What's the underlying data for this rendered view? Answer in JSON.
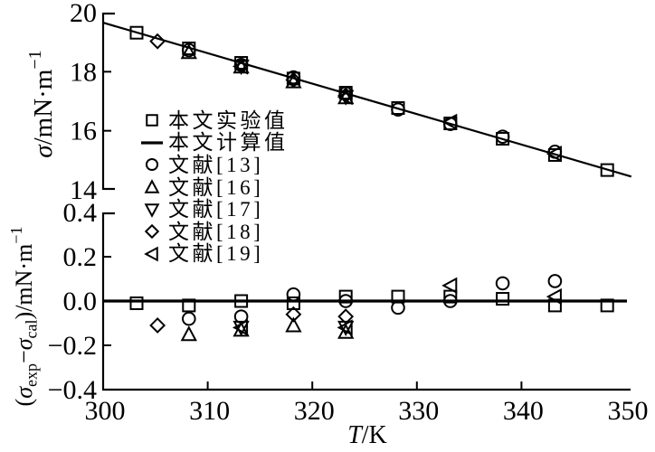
{
  "page": {
    "background": "#ffffff"
  },
  "chart_data": {
    "type": "scatter",
    "title": "",
    "colors": {
      "stroke": "#000000",
      "background": "#ffffff"
    },
    "x_axis": {
      "label_text": "T/K",
      "label_parts": [
        {
          "t": "T",
          "i": true
        },
        {
          "t": "/K"
        }
      ],
      "min": 300,
      "max": 350,
      "tick_values": [
        300,
        310,
        320,
        330,
        340,
        350
      ],
      "tick_labels": [
        "300",
        "310",
        "320",
        "330",
        "340",
        "350"
      ]
    },
    "top_panel": {
      "ylabel_text": "σ/mN·m⁻¹",
      "ylabel_parts": [
        {
          "t": "σ",
          "i": true
        },
        {
          "t": "/mN·m"
        },
        {
          "t": "−1",
          "sup": true
        }
      ],
      "ymin": 14,
      "ymax": 20,
      "tick_values": [
        20,
        18,
        16,
        14
      ],
      "tick_labels": [
        "20",
        "18",
        "16",
        "14"
      ],
      "line_series": {
        "name": "本文计算值",
        "x": [
          300,
          350.5
        ],
        "y": [
          19.66,
          14.45
        ]
      },
      "series": [
        {
          "name": "本文实验值",
          "marker": "square",
          "x": [
            303.2,
            308.2,
            313.2,
            318.2,
            323.2,
            328.2,
            333.2,
            338.2,
            343.2,
            348.2
          ],
          "y": [
            19.32,
            18.79,
            18.3,
            17.77,
            17.29,
            16.77,
            16.25,
            15.73,
            15.18,
            14.67
          ]
        },
        {
          "name": "文献[13]",
          "marker": "circle",
          "x": [
            308.2,
            313.2,
            318.2,
            323.2,
            328.2,
            333.2,
            338.2,
            343.2
          ],
          "y": [
            18.73,
            18.23,
            17.81,
            17.27,
            16.72,
            16.23,
            15.8,
            15.29
          ]
        },
        {
          "name": "文献[16]",
          "marker": "triangle-up",
          "x": [
            308.2,
            313.2,
            318.2,
            323.2
          ],
          "y": [
            18.66,
            18.17,
            17.67,
            17.13
          ]
        },
        {
          "name": "文献[17]",
          "marker": "triangle-down",
          "x": [
            313.2,
            323.2
          ],
          "y": [
            18.18,
            17.15
          ]
        },
        {
          "name": "文献[18]",
          "marker": "diamond",
          "x": [
            305.2,
            318.2,
            323.2
          ],
          "y": [
            19.03,
            17.72,
            17.2
          ]
        },
        {
          "name": "文献[19]",
          "marker": "triangle-left",
          "x": [
            313.2,
            323.2,
            333.2,
            343.2
          ],
          "y": [
            18.18,
            17.15,
            16.3,
            15.22
          ]
        }
      ]
    },
    "bottom_panel": {
      "ylabel_text": "(σexp−σcal)/mN·m⁻¹",
      "ylabel_parts": [
        {
          "t": "("
        },
        {
          "t": "σ",
          "i": true
        },
        {
          "t": "exp",
          "sub": true
        },
        {
          "t": "−"
        },
        {
          "t": "σ",
          "i": true
        },
        {
          "t": "cal",
          "sub": true
        },
        {
          "t": ")/mN·m"
        },
        {
          "t": "−1",
          "sup": true
        }
      ],
      "ymin": -0.4,
      "ymax": 0.4,
      "tick_values": [
        0.4,
        0.2,
        0.0,
        -0.2,
        -0.4
      ],
      "tick_labels": [
        "0.4",
        "0.2",
        "0.0",
        "−0.2",
        "−0.4"
      ],
      "zero_line": true,
      "series": [
        {
          "name": "本文实验值",
          "marker": "square",
          "x": [
            303.2,
            308.2,
            313.2,
            318.2,
            323.2,
            328.2,
            333.2,
            338.2,
            343.2,
            348.2
          ],
          "y": [
            -0.01,
            -0.02,
            0.0,
            -0.01,
            0.02,
            0.02,
            0.02,
            0.01,
            -0.02,
            -0.02
          ]
        },
        {
          "name": "文献[13]",
          "marker": "circle",
          "x": [
            308.2,
            313.2,
            318.2,
            323.2,
            328.2,
            333.2,
            338.2,
            343.2
          ],
          "y": [
            -0.08,
            -0.07,
            0.03,
            0.0,
            -0.03,
            0.0,
            0.08,
            0.09
          ]
        },
        {
          "name": "文献[16]",
          "marker": "triangle-up",
          "x": [
            308.2,
            313.2,
            318.2,
            323.2
          ],
          "y": [
            -0.15,
            -0.13,
            -0.11,
            -0.14
          ]
        },
        {
          "name": "文献[17]",
          "marker": "triangle-down",
          "x": [
            313.2,
            323.2
          ],
          "y": [
            -0.12,
            -0.12
          ]
        },
        {
          "name": "文献[18]",
          "marker": "diamond",
          "x": [
            305.2,
            318.2,
            323.2
          ],
          "y": [
            -0.11,
            -0.06,
            -0.07
          ]
        },
        {
          "name": "文献[19]",
          "marker": "triangle-left",
          "x": [
            313.2,
            323.2,
            333.2,
            343.2
          ],
          "y": [
            -0.12,
            -0.12,
            0.07,
            0.02
          ]
        }
      ]
    },
    "legend": {
      "position": "center-left",
      "items": [
        {
          "marker": "square",
          "label": "本文实验值"
        },
        {
          "marker": "line",
          "label": "本文计算值"
        },
        {
          "marker": "circle",
          "label": "文献[13]"
        },
        {
          "marker": "triangle-up",
          "label": "文献[16]"
        },
        {
          "marker": "triangle-down",
          "label": "文献[17]"
        },
        {
          "marker": "diamond",
          "label": "文献[18]"
        },
        {
          "marker": "triangle-left",
          "label": "文献[19]"
        }
      ]
    }
  }
}
